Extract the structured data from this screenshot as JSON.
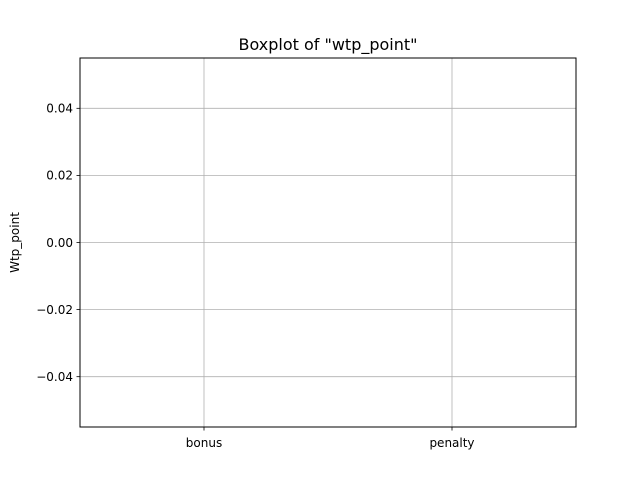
{
  "chart_data": {
    "type": "box",
    "title": "Boxplot of \"wtp_point\"",
    "xlabel": "",
    "ylabel": "Wtp_point",
    "categories": [
      "bonus",
      "penalty"
    ],
    "values": [],
    "ylim": [
      -0.055,
      0.055
    ],
    "yticks": [
      -0.04,
      -0.02,
      0.0,
      0.02,
      0.04
    ],
    "ytick_labels": [
      "−0.04",
      "−0.02",
      "0.00",
      "0.02",
      "0.04"
    ],
    "grid": true,
    "colors": {
      "grid": "#b0b0b0",
      "axes": "#000000",
      "background": "#ffffff"
    }
  }
}
